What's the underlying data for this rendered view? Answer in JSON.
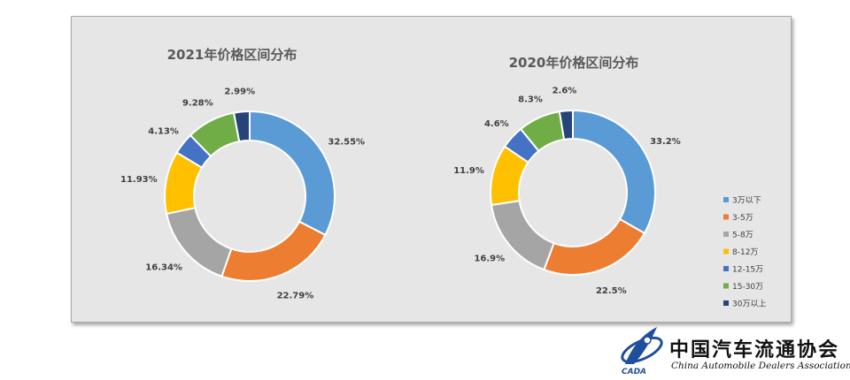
{
  "colors": [
    "#5b9bd5",
    "#ed7d31",
    "#a5a5a5",
    "#ffc000",
    "#4472c4",
    "#70ad47",
    "#264478"
  ],
  "legend": [
    "3万以下",
    "3-5万",
    "5-8万",
    "8-12万",
    "12-15万",
    "15-30万",
    "30万以上"
  ],
  "chart_data": [
    {
      "type": "pie",
      "title": "2021年价格区间分布",
      "categories": [
        "3万以下",
        "3-5万",
        "5-8万",
        "8-12万",
        "12-15万",
        "15-30万",
        "30万以上"
      ],
      "values": [
        32.55,
        22.79,
        16.34,
        11.93,
        4.13,
        9.28,
        2.99
      ],
      "labels": [
        "32.55%",
        "22.79%",
        "16.34%",
        "11.93%",
        "4.13%",
        "9.28%",
        "2.99%"
      ],
      "donut": true
    },
    {
      "type": "pie",
      "title": "2020年价格区间分布",
      "categories": [
        "3万以下",
        "3-5万",
        "5-8万",
        "8-12万",
        "12-15万",
        "15-30万",
        "30万以上"
      ],
      "values": [
        33.2,
        22.5,
        16.9,
        11.9,
        4.6,
        8.3,
        2.6
      ],
      "labels": [
        "33.2%",
        "22.5%",
        "16.9%",
        "11.9%",
        "4.6%",
        "8.3%",
        "2.6%"
      ],
      "donut": true,
      "legend_position": "right"
    }
  ],
  "logo": {
    "org_cn": "中国汽车流通协会",
    "org_en": "China Automobile Dealers Association",
    "mark_text": "CADA"
  }
}
